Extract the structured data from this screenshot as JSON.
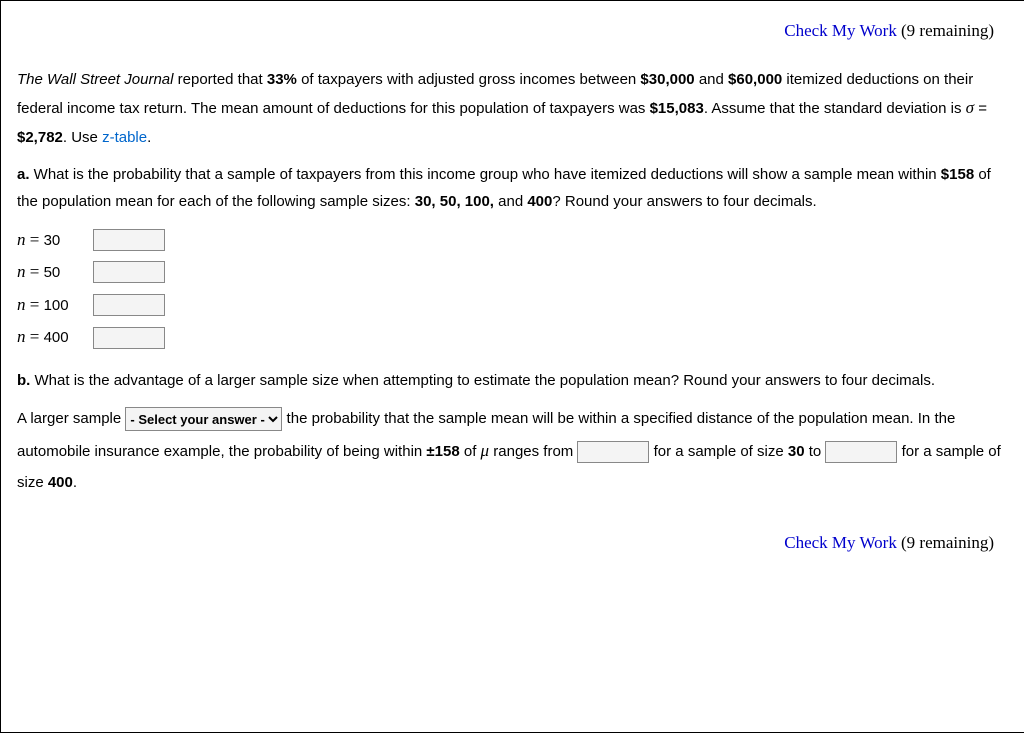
{
  "header": {
    "check_label": "Check My Work",
    "remaining": "(9 remaining)"
  },
  "intro": {
    "journal": "The Wall Street Journal",
    "pct": "33%",
    "income_low": "$30,000",
    "income_high": "$60,000",
    "mean": "$15,083",
    "sigma_sym": "σ",
    "sigma_val": "$2,782",
    "ztable": "z-table",
    "text1a": " reported that ",
    "text1b": " of taxpayers with adjusted gross incomes between ",
    "text1c": " and ",
    "text1d": " itemized deductions on their federal income tax return. The mean amount of deductions for this population of taxpayers was ",
    "text1e": ". Assume that the standard deviation is ",
    "text1f": ". Use ",
    "text1g": "."
  },
  "partA": {
    "label": "a.",
    "q1": " What is the probability that a sample of taxpayers from this income group who have itemized deductions will show a sample mean within ",
    "within": "$158",
    "q2": " of the population mean for each of the following sample sizes: ",
    "sizes": "30, 50, 100,",
    "and": " and ",
    "last": "400",
    "q3": "? Round your answers to four decimals.",
    "rows": [
      {
        "n": "30"
      },
      {
        "n": "50"
      },
      {
        "n": "100"
      },
      {
        "n": "400"
      }
    ]
  },
  "partB": {
    "label": "b.",
    "q": " What is the advantage of a larger sample size when attempting to estimate the population mean? Round your answers to four decimals.",
    "t1": "A larger sample ",
    "select_placeholder": "- Select your answer -",
    "t2": " the probability that the sample mean will be within a specified distance of the population mean. In the automobile insurance example, the probability of being within ",
    "pm": "±158",
    "of": " of ",
    "mu": "μ",
    "t3": " ranges from ",
    "t4": " for a sample of size ",
    "s1": "30",
    "t5": " to ",
    "t6": " for a sample of size ",
    "s2": "400",
    "t7": "."
  },
  "footer": {
    "check_label": "Check My Work",
    "remaining": "(9 remaining)"
  }
}
